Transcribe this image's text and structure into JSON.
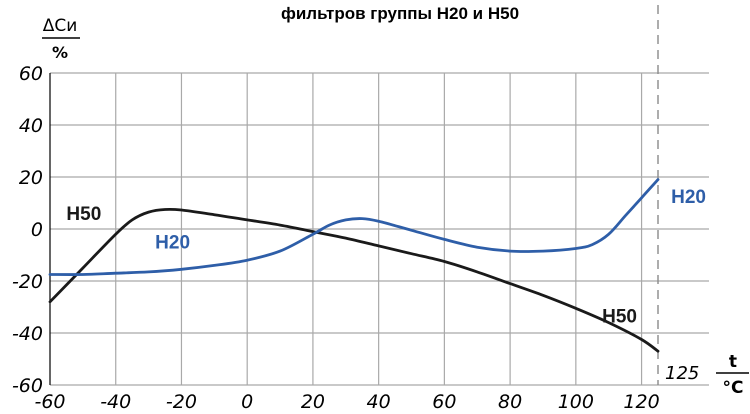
{
  "title": "фильтров группы H20 и H50",
  "chart_data": {
    "type": "line",
    "title": "фильтров группы H20 и H50",
    "ylabel_num": "ΔCи",
    "ylabel_den": "%",
    "xlabel_num": "t",
    "xlabel_den": "°C",
    "xlim": [
      -60,
      125
    ],
    "ylim": [
      -60,
      60
    ],
    "x_ticks": [
      -60,
      -40,
      -20,
      0,
      20,
      40,
      60,
      80,
      100,
      120
    ],
    "y_ticks": [
      60,
      40,
      20,
      0,
      -20,
      -40,
      -60
    ],
    "x_tick_labels": [
      "-60",
      "-40",
      "-20",
      "0",
      "20",
      "40",
      "60",
      "80",
      "100",
      "120"
    ],
    "y_tick_labels": [
      "60",
      "40",
      "20",
      "0",
      "-20",
      "-40",
      "-60"
    ],
    "grid": true,
    "marker_label": "125",
    "marker_x": 125,
    "series": [
      {
        "name": "H50",
        "color": "#1a1a1a",
        "x": [
          -60,
          -50,
          -40,
          -35,
          -30,
          -25,
          -20,
          -10,
          0,
          10,
          20,
          30,
          40,
          50,
          60,
          70,
          80,
          90,
          100,
          110,
          120,
          125
        ],
        "y": [
          -28,
          -15,
          -2,
          3.5,
          6.5,
          7.5,
          7.3,
          5.5,
          3.5,
          1.5,
          -1,
          -3.5,
          -6.5,
          -9.5,
          -12.5,
          -16.5,
          -21,
          -25.5,
          -30.5,
          -36,
          -42.5,
          -47
        ]
      },
      {
        "name": "H20",
        "color": "#2e5ea8",
        "x": [
          -60,
          -50,
          -40,
          -30,
          -20,
          -10,
          0,
          10,
          20,
          25,
          30,
          35,
          40,
          50,
          60,
          70,
          80,
          90,
          100,
          105,
          110,
          115,
          120,
          125
        ],
        "y": [
          -17.5,
          -17.5,
          -17,
          -16.5,
          -15.5,
          -14,
          -12,
          -8.5,
          -2,
          1.5,
          3.5,
          4,
          3,
          -0.5,
          -4,
          -7,
          -8.5,
          -8.5,
          -7.5,
          -6,
          -2,
          5,
          12,
          19
        ]
      }
    ],
    "series_labels": [
      {
        "text": "H50",
        "series": "H50",
        "x": -55,
        "y": 3.5
      },
      {
        "text": "H20",
        "series": "H20",
        "x": -28,
        "y": -7.5
      },
      {
        "text": "H20",
        "series": "H20",
        "x": 129,
        "y": 10
      },
      {
        "text": "H50",
        "series": "H50",
        "x": 108,
        "y": -36
      }
    ]
  }
}
